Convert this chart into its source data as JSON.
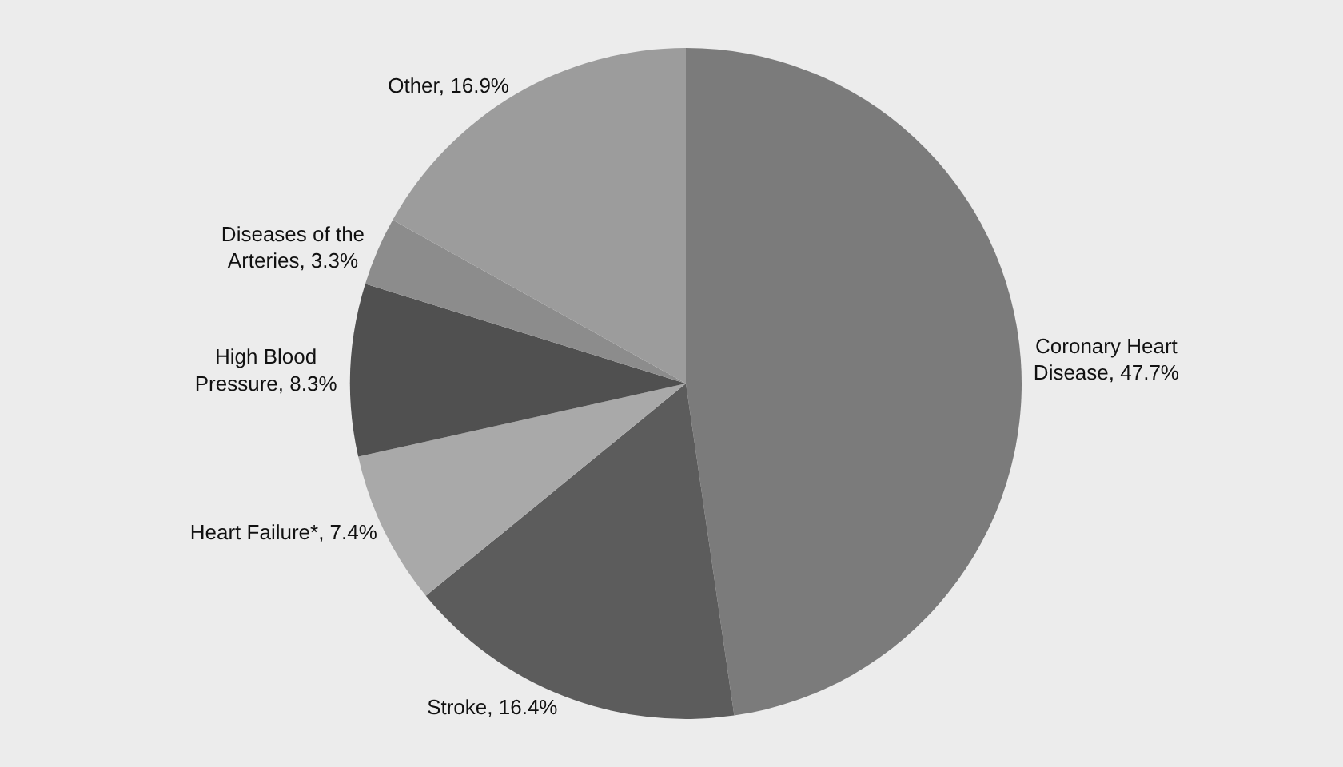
{
  "chart_data": {
    "type": "pie",
    "categories": [
      "Coronary Heart Disease",
      "Stroke",
      "Heart Failure*",
      "High Blood Pressure",
      "Diseases of the Arteries",
      "Other"
    ],
    "values": [
      47.7,
      16.4,
      7.4,
      8.3,
      3.3,
      16.9
    ],
    "value_labels": [
      "47.7%",
      "16.4%",
      "7.4%",
      "8.3%",
      "3.3%",
      "16.9%"
    ],
    "colors": [
      "#7b7b7b",
      "#5c5c5c",
      "#a9a9a9",
      "#505050",
      "#8c8c8c",
      "#9c9c9c"
    ],
    "legend": false
  }
}
